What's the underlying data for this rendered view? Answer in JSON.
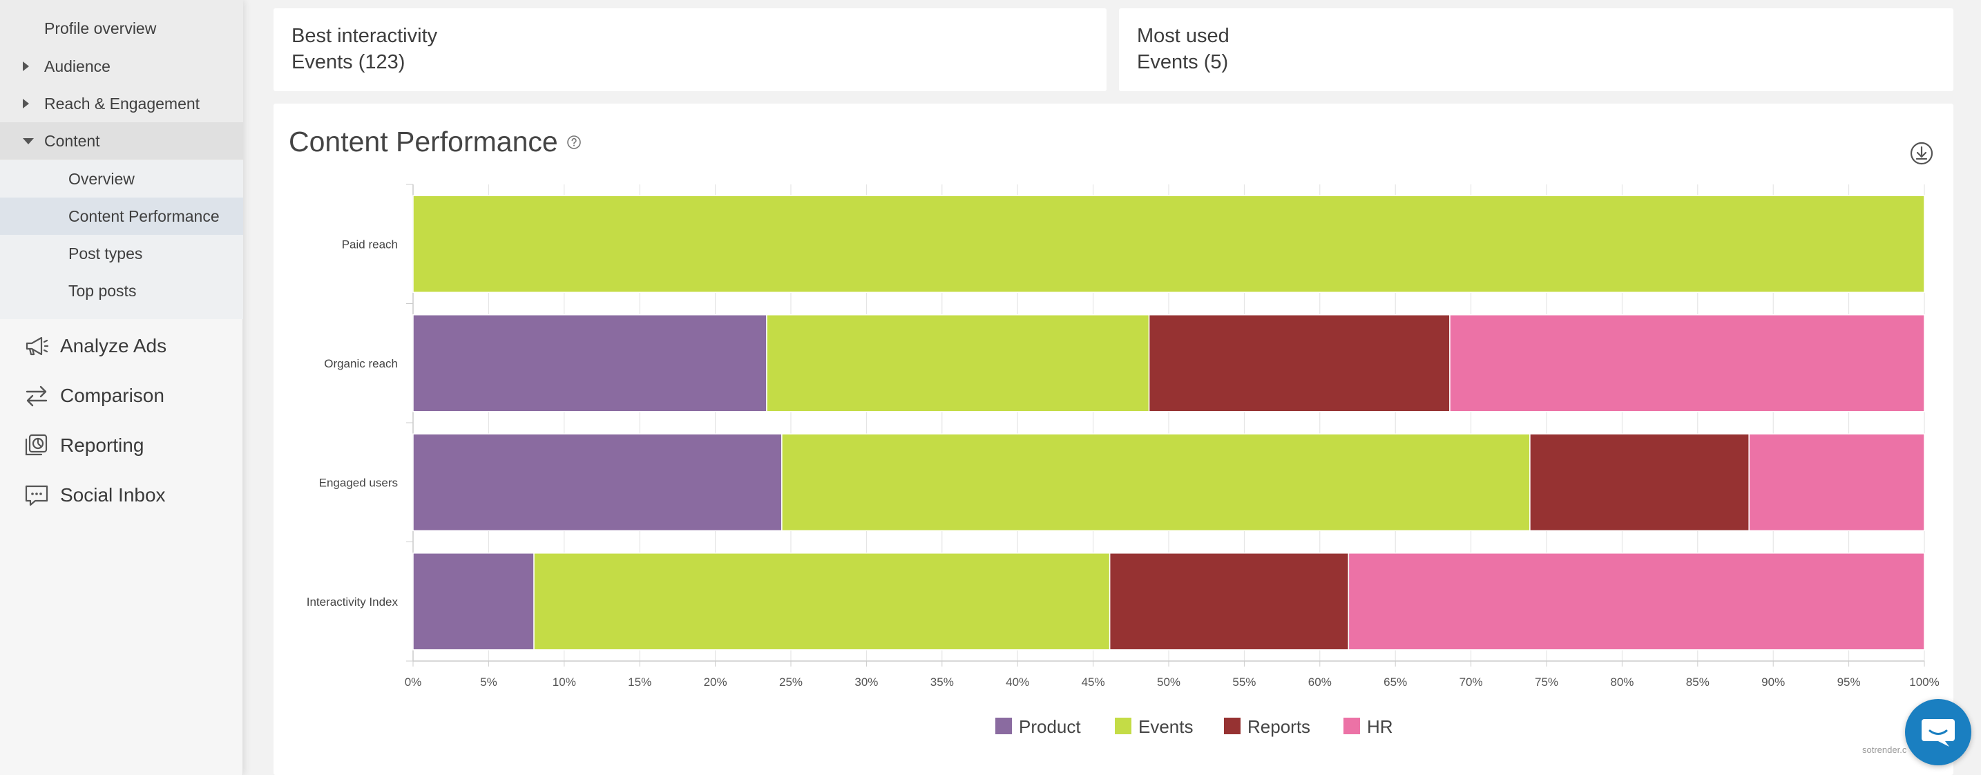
{
  "sidebar": {
    "items": [
      {
        "label": "Profile overview"
      },
      {
        "label": "Audience"
      },
      {
        "label": "Reach & Engagement"
      },
      {
        "label": "Content"
      }
    ],
    "sub_items": [
      {
        "label": "Overview"
      },
      {
        "label": "Content Performance"
      },
      {
        "label": "Post types"
      },
      {
        "label": "Top posts"
      }
    ],
    "main_items": [
      {
        "label": "Analyze Ads",
        "icon": "megaphone-icon"
      },
      {
        "label": "Comparison",
        "icon": "arrows-swap-icon"
      },
      {
        "label": "Reporting",
        "icon": "report-chart-icon"
      },
      {
        "label": "Social Inbox",
        "icon": "chat-bubble-icon"
      }
    ]
  },
  "cards": [
    {
      "title": "Best interactivity",
      "value": "Events (123)"
    },
    {
      "title": "Most used",
      "value": "Events (5)"
    }
  ],
  "panel": {
    "title": "Content Performance"
  },
  "watermark": "sotrender.c",
  "colors": {
    "Product": "#8a6ba0",
    "Events": "#c4dc46",
    "Reports": "#963232",
    "HR": "#ec72a6"
  },
  "chart_data": {
    "type": "bar",
    "orientation": "horizontal",
    "stacked": "percent",
    "categories": [
      "Paid reach",
      "Organic reach",
      "Engaged users",
      "Interactivity Index"
    ],
    "series": [
      {
        "name": "Product",
        "values": [
          0,
          23.4,
          24.4,
          8.0
        ]
      },
      {
        "name": "Events",
        "values": [
          100,
          25.3,
          49.5,
          38.1
        ]
      },
      {
        "name": "Reports",
        "values": [
          0,
          19.9,
          14.5,
          15.8
        ]
      },
      {
        "name": "HR",
        "values": [
          0,
          31.4,
          11.6,
          38.1
        ]
      }
    ],
    "xticks": [
      "0%",
      "5%",
      "10%",
      "15%",
      "20%",
      "25%",
      "30%",
      "35%",
      "40%",
      "45%",
      "50%",
      "55%",
      "60%",
      "65%",
      "70%",
      "75%",
      "80%",
      "85%",
      "90%",
      "95%",
      "100%"
    ],
    "xlim": [
      0,
      100
    ],
    "grid": true,
    "legend": [
      "Product",
      "Events",
      "Reports",
      "HR"
    ],
    "legend_position": "bottom-center"
  }
}
